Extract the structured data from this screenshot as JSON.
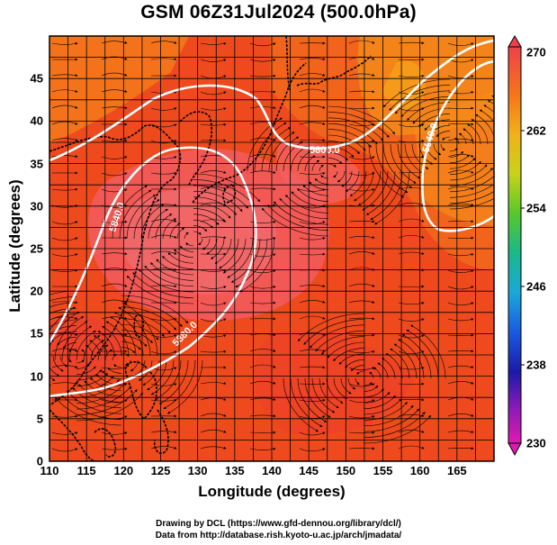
{
  "title": "GSM 06Z31Jul2024 (500.0hPa)",
  "axes": {
    "xlabel": "Longitude (degrees)",
    "ylabel": "Latitude  (degrees)",
    "xticks": [
      "110",
      "115",
      "120",
      "125",
      "130",
      "135",
      "140",
      "145",
      "150",
      "155",
      "160",
      "165"
    ],
    "yticks": [
      "0",
      "5",
      "10",
      "15",
      "20",
      "25",
      "30",
      "35",
      "40",
      "45"
    ],
    "xlim": [
      110,
      170
    ],
    "ylim": [
      0,
      50
    ]
  },
  "colorbar": {
    "labels": [
      "270",
      "262",
      "254",
      "246",
      "238",
      "230"
    ],
    "range": [
      230,
      270
    ]
  },
  "contours": {
    "label_5800": "5800.0",
    "label_5840_a": "5840.0",
    "label_5840_b": "5840.0",
    "label_5880": "5880.0"
  },
  "credits": {
    "line1": "Drawing by DCL (https://www.gfd-dennou.org/library/dcl/)",
    "line2": "Data from http://database.rish.kyoto-u.ac.jp/arch/jmadata/"
  },
  "colors": {
    "warm_field": "#f04a20",
    "core_field": "#f26060",
    "orange_field": "#f58a1a",
    "contour": "#ffffff",
    "coast": "#000000"
  }
}
